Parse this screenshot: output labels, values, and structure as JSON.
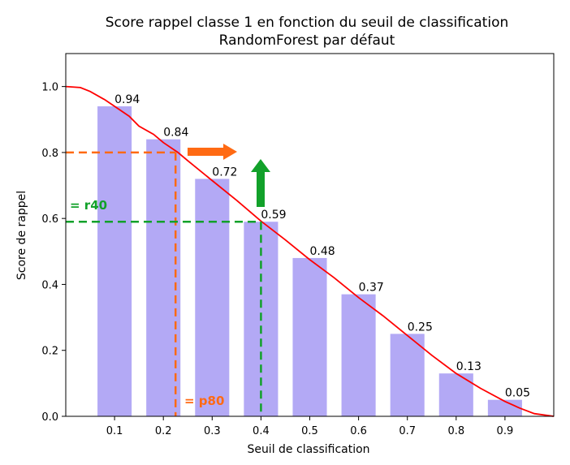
{
  "chart_data": {
    "type": "bar",
    "title": "Score rappel classe 1 en fonction du seuil de classification",
    "subtitle": "RandomForest par défaut",
    "xlabel": "Seuil de classification",
    "ylabel": "Score de rappel",
    "xlim": [
      0.0,
      1.0
    ],
    "ylim": [
      0.0,
      1.1
    ],
    "x_ticks": [
      "0.1",
      "0.2",
      "0.3",
      "0.4",
      "0.5",
      "0.6",
      "0.7",
      "0.8",
      "0.9"
    ],
    "y_ticks": [
      "0.0",
      "0.2",
      "0.4",
      "0.6",
      "0.8",
      "1.0"
    ],
    "grid": false,
    "bar_color": "#b3a9f5",
    "categories": [
      0.1,
      0.2,
      0.3,
      0.4,
      0.5,
      0.6,
      0.7,
      0.8,
      0.9
    ],
    "values": [
      0.94,
      0.84,
      0.72,
      0.59,
      0.48,
      0.37,
      0.25,
      0.13,
      0.05
    ],
    "value_labels": [
      "0.94",
      "0.84",
      "0.72",
      "0.59",
      "0.48",
      "0.37",
      "0.25",
      "0.13",
      "0.05"
    ],
    "curve": {
      "color": "#ff0000",
      "x": [
        0.0,
        0.03,
        0.05,
        0.08,
        0.1,
        0.13,
        0.15,
        0.18,
        0.2,
        0.23,
        0.25,
        0.3,
        0.35,
        0.4,
        0.45,
        0.5,
        0.55,
        0.6,
        0.65,
        0.7,
        0.75,
        0.8,
        0.85,
        0.9,
        0.93,
        0.96,
        1.0
      ],
      "y": [
        1.0,
        0.997,
        0.985,
        0.96,
        0.94,
        0.91,
        0.88,
        0.855,
        0.83,
        0.8,
        0.775,
        0.715,
        0.655,
        0.592,
        0.535,
        0.475,
        0.42,
        0.36,
        0.305,
        0.245,
        0.185,
        0.13,
        0.085,
        0.045,
        0.025,
        0.008,
        0.0
      ]
    },
    "annotations": {
      "orange": {
        "color": "#ff6a13",
        "label": "= p80",
        "y": 0.8,
        "x": 0.225
      },
      "green": {
        "color": "#12a12a",
        "label": "= r40",
        "y": 0.59,
        "x": 0.4
      }
    }
  }
}
